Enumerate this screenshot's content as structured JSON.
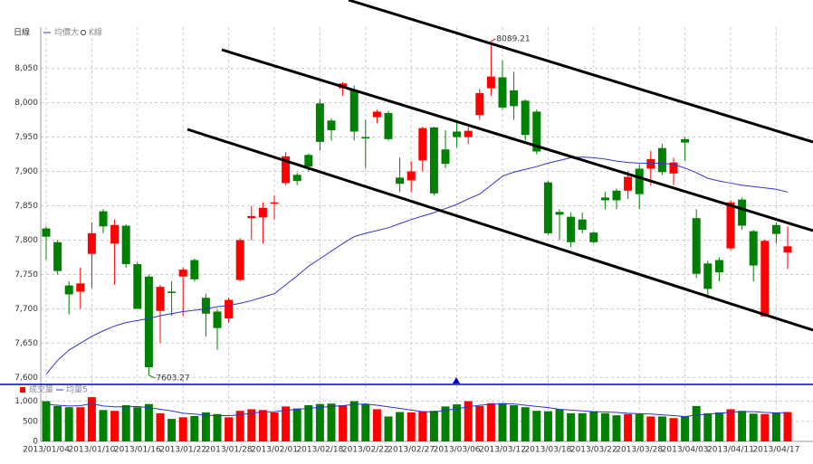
{
  "chart_data": [
    {
      "type": "candlestick",
      "title": "日線",
      "categories": [
        "2013/01/04",
        null,
        null,
        null,
        "2013/01/10",
        null,
        null,
        null,
        "2013/01/16",
        null,
        null,
        null,
        "2013/01/22",
        null,
        null,
        null,
        "2013/01/28",
        null,
        null,
        null,
        "2013/02/01",
        null,
        null,
        null,
        "2013/02/18",
        null,
        null,
        null,
        "2013/02/22",
        null,
        null,
        null,
        "2013/02/27",
        null,
        null,
        null,
        "2013/03/06",
        null,
        null,
        null,
        "2013/03/12",
        null,
        null,
        null,
        "2013/03/18",
        null,
        null,
        null,
        "2013/03/22",
        null,
        null,
        null,
        "2013/03/28",
        null,
        null,
        null,
        "2013/04/03",
        null,
        null,
        null,
        "2013/04/11",
        null,
        null,
        null,
        "2013/04/17",
        null
      ],
      "open": [
        7817,
        7797,
        7734,
        7725,
        7780,
        7842,
        7795,
        7821,
        7765,
        7747,
        7697,
        7725,
        7747,
        7771,
        7716,
        7696,
        7686,
        7742,
        7832,
        7833,
        7853,
        7883,
        7895,
        7924,
        7999,
        7974,
        8021,
        8018,
        7950,
        7979,
        7985,
        7891,
        7887,
        7916,
        7964,
        7932,
        7958,
        7950,
        7982,
        8021,
        8037,
        8018,
        8003,
        7987,
        7884,
        7841,
        7834,
        7830,
        7811,
        7862,
        7872,
        7872,
        7904,
        7904,
        7934,
        7897,
        7947,
        7832,
        7766,
        7771,
        7788,
        7859,
        7813,
        7689,
        7822,
        7782
      ],
      "high": [
        7820,
        7800,
        7740,
        7760,
        7826,
        7845,
        7830,
        7823,
        7768,
        7750,
        7735,
        7740,
        7760,
        7773,
        7722,
        7700,
        7716,
        7803,
        7850,
        7855,
        7865,
        7928,
        7898,
        7926,
        8005,
        7977,
        8030,
        8025,
        7975,
        7990,
        7988,
        7920,
        7915,
        7965,
        7965,
        7960,
        7975,
        7965,
        8020,
        8089.21,
        8062,
        8045,
        8005,
        7990,
        7886,
        7845,
        7840,
        7840,
        7813,
        7870,
        7875,
        7900,
        7910,
        7930,
        7940,
        7920,
        7950,
        7845,
        7770,
        7775,
        7858,
        7862,
        7815,
        7801,
        7826,
        7820
      ],
      "low": [
        7771,
        7750,
        7692,
        7700,
        7730,
        7810,
        7735,
        7760,
        7700,
        7603.27,
        7650,
        7690,
        7690,
        7740,
        7660,
        7640,
        7680,
        7740,
        7800,
        7795,
        7830,
        7880,
        7880,
        7900,
        7930,
        7945,
        8010,
        7945,
        7905,
        7970,
        7945,
        7870,
        7870,
        7900,
        7865,
        7905,
        7935,
        7940,
        7975,
        8010,
        7990,
        7975,
        7945,
        7925,
        7808,
        7800,
        7790,
        7810,
        7795,
        7845,
        7845,
        7860,
        7845,
        7880,
        7895,
        7880,
        7915,
        7745,
        7715,
        7740,
        7785,
        7815,
        7740,
        7688,
        7795,
        7758
      ],
      "close": [
        7805,
        7755,
        7721,
        7737,
        7810,
        7820,
        7822,
        7765,
        7700,
        7615,
        7732,
        7723,
        7757,
        7743,
        7693,
        7672,
        7713,
        7800,
        7835,
        7847,
        7855,
        7922,
        7886,
        7907,
        7943,
        7960,
        8028,
        7958,
        7948,
        7987,
        7947,
        7882,
        7900,
        7963,
        7868,
        7911,
        7950,
        7959,
        8014,
        8038,
        7993,
        7995,
        7953,
        7929,
        7810,
        7837,
        7797,
        7815,
        7797,
        7858,
        7858,
        7892,
        7867,
        7918,
        7899,
        7913,
        7942,
        7751,
        7729,
        7753,
        7855,
        7821,
        7763,
        7799,
        7809,
        7791
      ],
      "candle_name": "K線",
      "up_color": "#ff0000",
      "down_color": "#008000",
      "series": [
        {
          "name": "均價大",
          "color": "#3333cc",
          "values": [
            7605,
            7625,
            7640,
            7650,
            7660,
            7668,
            7675,
            7680,
            7683,
            7686,
            7690,
            7693,
            7696,
            7698,
            7700,
            7703,
            7705,
            7708,
            7712,
            7717,
            7722,
            7735,
            7748,
            7762,
            7773,
            7784,
            7795,
            7805,
            7810,
            7814,
            7818,
            7824,
            7830,
            7835,
            7840,
            7846,
            7852,
            7860,
            7867,
            7880,
            7893,
            7899,
            7903,
            7907,
            7912,
            7916,
            7920,
            7921,
            7920,
            7918,
            7915,
            7913,
            7912,
            7912,
            7912,
            7910,
            7905,
            7898,
            7890,
            7886,
            7883,
            7880,
            7878,
            7876,
            7874,
            7870
          ]
        }
      ],
      "ylim": [
        7590,
        8110
      ],
      "yticks": [
        {
          "value": 7600,
          "label": "7,600"
        },
        {
          "value": 7650,
          "label": "7,650"
        },
        {
          "value": 7700,
          "label": "7,700"
        },
        {
          "value": 7750,
          "label": "7,750"
        },
        {
          "value": 7800,
          "label": "7,800"
        },
        {
          "value": 7850,
          "label": "7,850"
        },
        {
          "value": 7900,
          "label": "7,900"
        },
        {
          "value": 7950,
          "label": "7,950"
        },
        {
          "value": 8000,
          "label": "8,000"
        },
        {
          "value": 8050,
          "label": "8,050"
        }
      ],
      "grid": true
    },
    {
      "type": "bar",
      "series": [
        {
          "name": "成交量",
          "values": [
            1000,
            880,
            850,
            850,
            1100,
            780,
            760,
            900,
            850,
            930,
            700,
            560,
            600,
            630,
            720,
            680,
            600,
            760,
            800,
            780,
            720,
            870,
            820,
            900,
            930,
            940,
            900,
            1000,
            930,
            800,
            620,
            730,
            720,
            750,
            760,
            870,
            920,
            1000,
            880,
            950,
            950,
            900,
            850,
            760,
            750,
            800,
            700,
            700,
            750,
            700,
            650,
            680,
            680,
            620,
            620,
            580,
            620,
            880,
            700,
            720,
            800,
            760,
            690,
            680,
            720,
            730
          ]
        },
        {
          "name": "均量5",
          "color": "#3333cc",
          "values": [
            920,
            900,
            880,
            890,
            940,
            880,
            860,
            860,
            870,
            840,
            800,
            760,
            700,
            680,
            650,
            640,
            640,
            660,
            700,
            730,
            740,
            770,
            800,
            820,
            850,
            870,
            890,
            920,
            930,
            900,
            860,
            820,
            780,
            740,
            730,
            770,
            810,
            860,
            900,
            920,
            940,
            930,
            900,
            870,
            840,
            800,
            780,
            760,
            740,
            730,
            720,
            700,
            690,
            680,
            660,
            640,
            620,
            650,
            680,
            700,
            720,
            740,
            740,
            720,
            710,
            720
          ]
        }
      ],
      "ylim": [
        0,
        1350
      ],
      "yticks": [
        0,
        500,
        {
          "value": 1000,
          "label": "1,000"
        }
      ],
      "grid": true
    }
  ]
}
